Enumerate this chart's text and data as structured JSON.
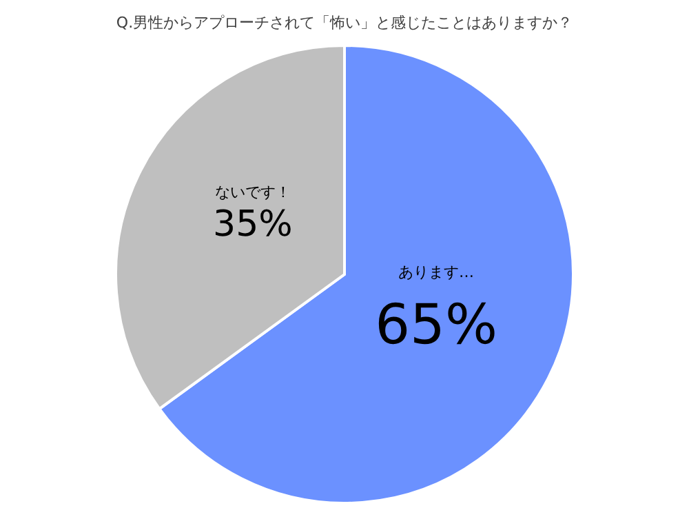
{
  "chart_data": {
    "type": "pie",
    "title": "Q.男性からアプローチされて「怖い」と感じたことはありますか？",
    "categories": [
      "あります…",
      "ないです！"
    ],
    "values": [
      65,
      35
    ],
    "colors": [
      "#6b91ff",
      "#bfbfbf"
    ],
    "value_labels": [
      "65%",
      "35%"
    ]
  }
}
